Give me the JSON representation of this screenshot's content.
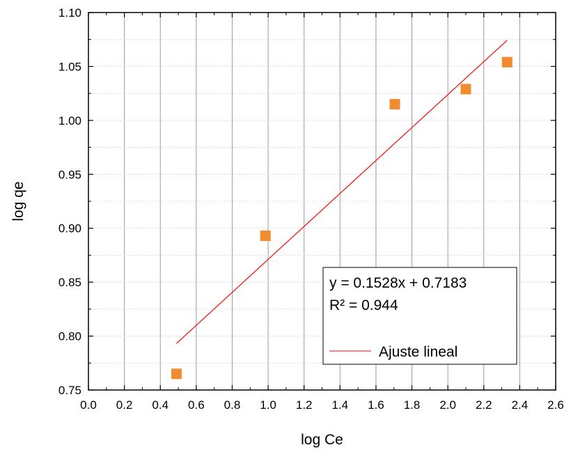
{
  "chart_data": {
    "type": "scatter",
    "title": "",
    "xlabel": "log Ce",
    "ylabel": "log qe",
    "xlim": [
      0.0,
      2.6
    ],
    "ylim": [
      0.75,
      1.1
    ],
    "x_ticks": [
      "0.0",
      "0.2",
      "0.4",
      "0.6",
      "0.8",
      "1.0",
      "1.2",
      "1.4",
      "1.6",
      "1.8",
      "2.0",
      "2.2",
      "2.4",
      "2.6"
    ],
    "y_ticks": [
      "0.75",
      "0.80",
      "0.85",
      "0.90",
      "0.95",
      "1.00",
      "1.05",
      "1.10"
    ],
    "grid": "on",
    "series": [
      {
        "type": "scatter",
        "marker": "square",
        "color": "#f08c2e",
        "x": [
          0.49,
          0.985,
          1.705,
          2.1,
          2.33
        ],
        "y": [
          0.765,
          0.893,
          1.015,
          1.029,
          1.054
        ]
      },
      {
        "type": "line",
        "name": "Ajuste lineal",
        "color": "#ff0000",
        "slope": 0.1528,
        "intercept": 0.7183,
        "x_range": [
          0.49,
          2.33
        ]
      }
    ],
    "annotation": {
      "equation": "y = 0.1528x + 0.7183",
      "r2": "R² = 0.944"
    },
    "legend": {
      "position": "bottom-right",
      "entries": [
        "Ajuste lineal"
      ]
    }
  }
}
